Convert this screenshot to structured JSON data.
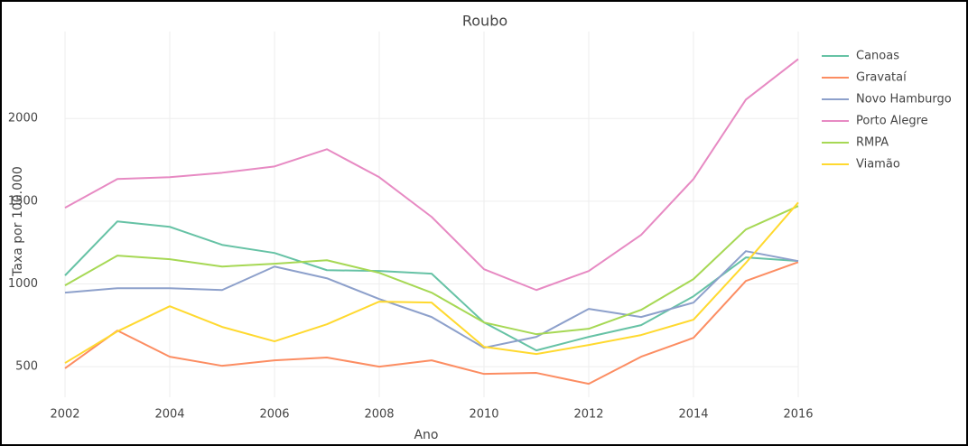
{
  "chart_data": {
    "type": "line",
    "title": "Roubo",
    "x_label": "Ano",
    "y_label": "Taxa por 100.000",
    "x": [
      2002,
      2003,
      2004,
      2005,
      2006,
      2007,
      2008,
      2009,
      2010,
      2011,
      2012,
      2013,
      2014,
      2015,
      2016
    ],
    "xlim": [
      2002,
      2016
    ],
    "xticks": [
      2002,
      2004,
      2006,
      2008,
      2010,
      2012,
      2014,
      2016
    ],
    "ylim": [
      315,
      2525
    ],
    "yticks": [
      500,
      1000,
      1500,
      2000
    ],
    "grid": true,
    "legend": "right",
    "series": [
      {
        "name": "Canoas",
        "color": "#66c2a5",
        "values": [
          1051,
          1378,
          1345,
          1236,
          1187,
          1083,
          1078,
          1062,
          767,
          598,
          680,
          751,
          925,
          1160,
          1138
        ]
      },
      {
        "name": "Gravataí",
        "color": "#fc8d62",
        "values": [
          490,
          718,
          560,
          505,
          538,
          555,
          500,
          538,
          456,
          462,
          396,
          560,
          674,
          1018,
          1132
        ]
      },
      {
        "name": "Novo Hamburgo",
        "color": "#8da0cb",
        "values": [
          947,
          974,
          974,
          963,
          1105,
          1034,
          909,
          800,
          614,
          680,
          849,
          800,
          887,
          1198,
          1138
        ]
      },
      {
        "name": "Porto Alegre",
        "color": "#e78ac3",
        "values": [
          1460,
          1634,
          1645,
          1672,
          1710,
          1814,
          1645,
          1405,
          1089,
          963,
          1078,
          1296,
          1634,
          2114,
          2359
        ]
      },
      {
        "name": "RMPA",
        "color": "#a6d854",
        "values": [
          991,
          1171,
          1149,
          1105,
          1122,
          1143,
          1067,
          947,
          767,
          696,
          729,
          843,
          1029,
          1329,
          1471
        ]
      },
      {
        "name": "Viamão",
        "color": "#ffd92f",
        "values": [
          522,
          713,
          865,
          740,
          653,
          756,
          893,
          887,
          620,
          576,
          631,
          691,
          784,
          1127,
          1492
        ]
      }
    ]
  }
}
